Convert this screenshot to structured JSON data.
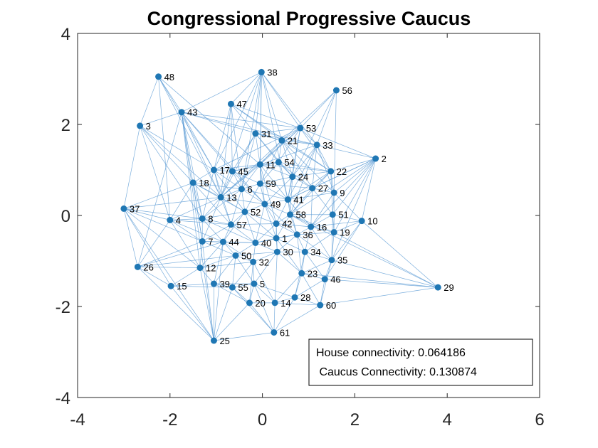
{
  "chart_data": {
    "type": "scatter",
    "title": "Congressional Progressive Caucus",
    "xlabel": "",
    "ylabel": "",
    "xlim": [
      -4,
      6
    ],
    "ylim": [
      -4,
      4
    ],
    "xticks": [
      "-4",
      "-2",
      "0",
      "2",
      "4",
      "6"
    ],
    "yticks": [
      "4",
      "2",
      "0",
      "-2",
      "-4"
    ],
    "grid": false,
    "marker_color": "#1f77b4",
    "edge_color": "#5b9bd5",
    "nodes": [
      {
        "id": "1",
        "x": 0.3,
        "y": -0.5
      },
      {
        "id": "2",
        "x": 2.45,
        "y": 1.25
      },
      {
        "id": "3",
        "x": -2.65,
        "y": 1.97
      },
      {
        "id": "4",
        "x": -2.0,
        "y": -0.1
      },
      {
        "id": "5",
        "x": -0.18,
        "y": -1.5
      },
      {
        "id": "6",
        "x": -0.45,
        "y": 0.58
      },
      {
        "id": "7",
        "x": -1.3,
        "y": -0.57
      },
      {
        "id": "8",
        "x": -1.3,
        "y": -0.07
      },
      {
        "id": "9",
        "x": 1.55,
        "y": 0.5
      },
      {
        "id": "10",
        "x": 2.15,
        "y": -0.12
      },
      {
        "id": "11",
        "x": -0.05,
        "y": 1.12
      },
      {
        "id": "12",
        "x": -1.35,
        "y": -1.15
      },
      {
        "id": "13",
        "x": -0.9,
        "y": 0.4
      },
      {
        "id": "14",
        "x": 0.27,
        "y": -1.92
      },
      {
        "id": "15",
        "x": -1.98,
        "y": -1.55
      },
      {
        "id": "16",
        "x": 1.05,
        "y": -0.25
      },
      {
        "id": "17",
        "x": -1.05,
        "y": 1.0
      },
      {
        "id": "18",
        "x": -1.5,
        "y": 0.72
      },
      {
        "id": "19",
        "x": 1.55,
        "y": -0.37
      },
      {
        "id": "20",
        "x": -0.28,
        "y": -1.92
      },
      {
        "id": "21",
        "x": 0.42,
        "y": 1.65
      },
      {
        "id": "22",
        "x": 1.48,
        "y": 0.97
      },
      {
        "id": "23",
        "x": 0.85,
        "y": -1.27
      },
      {
        "id": "24",
        "x": 0.65,
        "y": 0.85
      },
      {
        "id": "25",
        "x": -1.05,
        "y": -2.75
      },
      {
        "id": "26",
        "x": -2.7,
        "y": -1.13
      },
      {
        "id": "27",
        "x": 1.08,
        "y": 0.6
      },
      {
        "id": "28",
        "x": 0.7,
        "y": -1.8
      },
      {
        "id": "29",
        "x": 3.8,
        "y": -1.58
      },
      {
        "id": "30",
        "x": 0.32,
        "y": -0.8
      },
      {
        "id": "31",
        "x": -0.15,
        "y": 1.8
      },
      {
        "id": "32",
        "x": -0.2,
        "y": -1.02
      },
      {
        "id": "33",
        "x": 1.18,
        "y": 1.55
      },
      {
        "id": "34",
        "x": 0.92,
        "y": -0.8
      },
      {
        "id": "35",
        "x": 1.5,
        "y": -0.98
      },
      {
        "id": "36",
        "x": 0.75,
        "y": -0.42
      },
      {
        "id": "37",
        "x": -3.0,
        "y": 0.15
      },
      {
        "id": "38",
        "x": -0.02,
        "y": 3.15
      },
      {
        "id": "39",
        "x": -1.05,
        "y": -1.5
      },
      {
        "id": "40",
        "x": -0.15,
        "y": -0.6
      },
      {
        "id": "41",
        "x": 0.55,
        "y": 0.35
      },
      {
        "id": "42",
        "x": 0.3,
        "y": -0.18
      },
      {
        "id": "43",
        "x": -1.75,
        "y": 2.27
      },
      {
        "id": "44",
        "x": -0.85,
        "y": -0.58
      },
      {
        "id": "45",
        "x": -0.65,
        "y": 0.97
      },
      {
        "id": "46",
        "x": 1.35,
        "y": -1.4
      },
      {
        "id": "47",
        "x": -0.68,
        "y": 2.45
      },
      {
        "id": "48",
        "x": -2.25,
        "y": 3.05
      },
      {
        "id": "49",
        "x": 0.05,
        "y": 0.25
      },
      {
        "id": "50",
        "x": -0.58,
        "y": -0.88
      },
      {
        "id": "51",
        "x": 1.52,
        "y": 0.02
      },
      {
        "id": "52",
        "x": -0.38,
        "y": 0.08
      },
      {
        "id": "53",
        "x": 0.82,
        "y": 1.92
      },
      {
        "id": "54",
        "x": 0.35,
        "y": 1.17
      },
      {
        "id": "55",
        "x": -0.65,
        "y": -1.58
      },
      {
        "id": "56",
        "x": 1.6,
        "y": 2.75
      },
      {
        "id": "57",
        "x": -0.68,
        "y": -0.2
      },
      {
        "id": "58",
        "x": 0.6,
        "y": 0.02
      },
      {
        "id": "59",
        "x": -0.05,
        "y": 0.7
      },
      {
        "id": "60",
        "x": 1.25,
        "y": -1.97
      },
      {
        "id": "61",
        "x": 0.25,
        "y": -2.57
      }
    ],
    "edges": [
      [
        "48",
        "43"
      ],
      [
        "48",
        "3"
      ],
      [
        "48",
        "17"
      ],
      [
        "48",
        "13"
      ],
      [
        "48",
        "11"
      ],
      [
        "38",
        "47"
      ],
      [
        "38",
        "31"
      ],
      [
        "38",
        "43"
      ],
      [
        "38",
        "11"
      ],
      [
        "38",
        "21"
      ],
      [
        "38",
        "33"
      ],
      [
        "38",
        "53"
      ],
      [
        "38",
        "59"
      ],
      [
        "38",
        "6"
      ],
      [
        "38",
        "41"
      ],
      [
        "38",
        "13"
      ],
      [
        "56",
        "53"
      ],
      [
        "56",
        "9"
      ],
      [
        "56",
        "24"
      ],
      [
        "56",
        "33"
      ],
      [
        "43",
        "3"
      ],
      [
        "43",
        "17"
      ],
      [
        "43",
        "13"
      ],
      [
        "43",
        "7"
      ],
      [
        "43",
        "26"
      ],
      [
        "43",
        "12"
      ],
      [
        "43",
        "45"
      ],
      [
        "43",
        "8"
      ],
      [
        "43",
        "49"
      ],
      [
        "43",
        "53"
      ],
      [
        "43",
        "21"
      ],
      [
        "43",
        "33"
      ],
      [
        "43",
        "25"
      ],
      [
        "47",
        "17"
      ],
      [
        "47",
        "31"
      ],
      [
        "47",
        "21"
      ],
      [
        "47",
        "6"
      ],
      [
        "47",
        "13"
      ],
      [
        "47",
        "22"
      ],
      [
        "47",
        "53"
      ],
      [
        "3",
        "17"
      ],
      [
        "3",
        "18"
      ],
      [
        "3",
        "13"
      ],
      [
        "3",
        "8"
      ],
      [
        "3",
        "4"
      ],
      [
        "31",
        "21"
      ],
      [
        "31",
        "53"
      ],
      [
        "31",
        "11"
      ],
      [
        "31",
        "54"
      ],
      [
        "31",
        "33"
      ],
      [
        "31",
        "45"
      ],
      [
        "31",
        "13"
      ],
      [
        "31",
        "24"
      ],
      [
        "31",
        "6"
      ],
      [
        "53",
        "21"
      ],
      [
        "53",
        "33"
      ],
      [
        "53",
        "22"
      ],
      [
        "53",
        "2"
      ],
      [
        "53",
        "24"
      ],
      [
        "53",
        "41"
      ],
      [
        "53",
        "11"
      ],
      [
        "53",
        "54"
      ],
      [
        "53",
        "13"
      ],
      [
        "53",
        "17"
      ],
      [
        "21",
        "33"
      ],
      [
        "21",
        "22"
      ],
      [
        "21",
        "54"
      ],
      [
        "21",
        "11"
      ],
      [
        "21",
        "13"
      ],
      [
        "21",
        "59"
      ],
      [
        "21",
        "24"
      ],
      [
        "21",
        "27"
      ],
      [
        "21",
        "9"
      ],
      [
        "33",
        "2"
      ],
      [
        "33",
        "22"
      ],
      [
        "33",
        "9"
      ],
      [
        "33",
        "27"
      ],
      [
        "33",
        "11"
      ],
      [
        "33",
        "24"
      ],
      [
        "33",
        "41"
      ],
      [
        "33",
        "58"
      ],
      [
        "2",
        "22"
      ],
      [
        "2",
        "9"
      ],
      [
        "2",
        "51"
      ],
      [
        "2",
        "10"
      ],
      [
        "2",
        "19"
      ],
      [
        "2",
        "27"
      ],
      [
        "2",
        "16"
      ],
      [
        "2",
        "58"
      ],
      [
        "2",
        "35"
      ],
      [
        "17",
        "45"
      ],
      [
        "17",
        "18"
      ],
      [
        "17",
        "13"
      ],
      [
        "17",
        "6"
      ],
      [
        "17",
        "11"
      ],
      [
        "17",
        "8"
      ],
      [
        "17",
        "57"
      ],
      [
        "17",
        "52"
      ],
      [
        "45",
        "11"
      ],
      [
        "45",
        "6"
      ],
      [
        "45",
        "13"
      ],
      [
        "45",
        "59"
      ],
      [
        "45",
        "49"
      ],
      [
        "45",
        "54"
      ],
      [
        "11",
        "54"
      ],
      [
        "11",
        "59"
      ],
      [
        "11",
        "24"
      ],
      [
        "11",
        "6"
      ],
      [
        "11",
        "49"
      ],
      [
        "11",
        "41"
      ],
      [
        "11",
        "22"
      ],
      [
        "11",
        "13"
      ],
      [
        "11",
        "42"
      ],
      [
        "54",
        "24"
      ],
      [
        "54",
        "22"
      ],
      [
        "54",
        "27"
      ],
      [
        "54",
        "41"
      ],
      [
        "54",
        "59"
      ],
      [
        "22",
        "9"
      ],
      [
        "22",
        "27"
      ],
      [
        "22",
        "24"
      ],
      [
        "22",
        "51"
      ],
      [
        "22",
        "41"
      ],
      [
        "22",
        "58"
      ],
      [
        "18",
        "13"
      ],
      [
        "18",
        "8"
      ],
      [
        "18",
        "4"
      ],
      [
        "18",
        "7"
      ],
      [
        "18",
        "37"
      ],
      [
        "18",
        "6"
      ],
      [
        "18",
        "57"
      ],
      [
        "18",
        "52"
      ],
      [
        "6",
        "59"
      ],
      [
        "6",
        "13"
      ],
      [
        "6",
        "49"
      ],
      [
        "6",
        "52"
      ],
      [
        "6",
        "57"
      ],
      [
        "6",
        "8"
      ],
      [
        "6",
        "41"
      ],
      [
        "24",
        "27"
      ],
      [
        "24",
        "41"
      ],
      [
        "24",
        "59"
      ],
      [
        "24",
        "49"
      ],
      [
        "24",
        "58"
      ],
      [
        "59",
        "49"
      ],
      [
        "59",
        "41"
      ],
      [
        "59",
        "52"
      ],
      [
        "59",
        "27"
      ],
      [
        "27",
        "9"
      ],
      [
        "27",
        "41"
      ],
      [
        "27",
        "58"
      ],
      [
        "27",
        "51"
      ],
      [
        "27",
        "16"
      ],
      [
        "9",
        "51"
      ],
      [
        "9",
        "10"
      ],
      [
        "9",
        "16"
      ],
      [
        "9",
        "41"
      ],
      [
        "9",
        "19"
      ],
      [
        "13",
        "8"
      ],
      [
        "13",
        "49"
      ],
      [
        "13",
        "52"
      ],
      [
        "13",
        "57"
      ],
      [
        "13",
        "4"
      ],
      [
        "13",
        "7"
      ],
      [
        "41",
        "49"
      ],
      [
        "41",
        "58"
      ],
      [
        "41",
        "42"
      ],
      [
        "41",
        "16"
      ],
      [
        "41",
        "36"
      ],
      [
        "37",
        "4"
      ],
      [
        "37",
        "8"
      ],
      [
        "37",
        "26"
      ],
      [
        "37",
        "7"
      ],
      [
        "37",
        "15"
      ],
      [
        "37",
        "25"
      ],
      [
        "37",
        "12"
      ],
      [
        "37",
        "13"
      ],
      [
        "4",
        "8"
      ],
      [
        "4",
        "7"
      ],
      [
        "4",
        "26"
      ],
      [
        "4",
        "57"
      ],
      [
        "4",
        "44"
      ],
      [
        "4",
        "12"
      ],
      [
        "8",
        "57"
      ],
      [
        "8",
        "52"
      ],
      [
        "8",
        "7"
      ],
      [
        "8",
        "44"
      ],
      [
        "8",
        "40"
      ],
      [
        "52",
        "49"
      ],
      [
        "52",
        "57"
      ],
      [
        "52",
        "42"
      ],
      [
        "52",
        "40"
      ],
      [
        "52",
        "44"
      ],
      [
        "52",
        "1"
      ],
      [
        "49",
        "42"
      ],
      [
        "49",
        "58"
      ],
      [
        "49",
        "40"
      ],
      [
        "49",
        "1"
      ],
      [
        "49",
        "36"
      ],
      [
        "58",
        "51"
      ],
      [
        "58",
        "16"
      ],
      [
        "58",
        "36"
      ],
      [
        "58",
        "42"
      ],
      [
        "58",
        "19"
      ],
      [
        "58",
        "1"
      ],
      [
        "51",
        "10"
      ],
      [
        "51",
        "16"
      ],
      [
        "51",
        "19"
      ],
      [
        "51",
        "35"
      ],
      [
        "10",
        "19"
      ],
      [
        "10",
        "16"
      ],
      [
        "10",
        "35"
      ],
      [
        "10",
        "29"
      ],
      [
        "10",
        "46"
      ],
      [
        "57",
        "42"
      ],
      [
        "57",
        "40"
      ],
      [
        "57",
        "44"
      ],
      [
        "57",
        "7"
      ],
      [
        "57",
        "1"
      ],
      [
        "42",
        "16"
      ],
      [
        "42",
        "36"
      ],
      [
        "42",
        "1"
      ],
      [
        "42",
        "40"
      ],
      [
        "42",
        "30"
      ],
      [
        "16",
        "36"
      ],
      [
        "16",
        "19"
      ],
      [
        "16",
        "34"
      ],
      [
        "16",
        "35"
      ],
      [
        "7",
        "44"
      ],
      [
        "7",
        "26"
      ],
      [
        "7",
        "12"
      ],
      [
        "7",
        "40"
      ],
      [
        "7",
        "50"
      ],
      [
        "44",
        "40"
      ],
      [
        "44",
        "50"
      ],
      [
        "44",
        "12"
      ],
      [
        "44",
        "32"
      ],
      [
        "44",
        "39"
      ],
      [
        "40",
        "1"
      ],
      [
        "40",
        "30"
      ],
      [
        "40",
        "50"
      ],
      [
        "40",
        "32"
      ],
      [
        "40",
        "36"
      ],
      [
        "1",
        "36"
      ],
      [
        "1",
        "30"
      ],
      [
        "1",
        "34"
      ],
      [
        "1",
        "23"
      ],
      [
        "36",
        "19"
      ],
      [
        "36",
        "34"
      ],
      [
        "36",
        "30"
      ],
      [
        "36",
        "35"
      ],
      [
        "36",
        "23"
      ],
      [
        "19",
        "35"
      ],
      [
        "19",
        "34"
      ],
      [
        "19",
        "29"
      ],
      [
        "26",
        "12"
      ],
      [
        "26",
        "15"
      ],
      [
        "26",
        "50"
      ],
      [
        "26",
        "25"
      ],
      [
        "26",
        "44"
      ],
      [
        "12",
        "50"
      ],
      [
        "12",
        "39"
      ],
      [
        "12",
        "15"
      ],
      [
        "12",
        "25"
      ],
      [
        "12",
        "32"
      ],
      [
        "50",
        "32"
      ],
      [
        "50",
        "30"
      ],
      [
        "50",
        "39"
      ],
      [
        "50",
        "55"
      ],
      [
        "50",
        "5"
      ],
      [
        "30",
        "34"
      ],
      [
        "30",
        "32"
      ],
      [
        "30",
        "23"
      ],
      [
        "30",
        "14"
      ],
      [
        "30",
        "5"
      ],
      [
        "34",
        "35"
      ],
      [
        "34",
        "23"
      ],
      [
        "34",
        "46"
      ],
      [
        "34",
        "28"
      ],
      [
        "35",
        "46"
      ],
      [
        "35",
        "23"
      ],
      [
        "35",
        "29"
      ],
      [
        "35",
        "60"
      ],
      [
        "32",
        "5"
      ],
      [
        "32",
        "55"
      ],
      [
        "32",
        "20"
      ],
      [
        "32",
        "14"
      ],
      [
        "23",
        "46"
      ],
      [
        "23",
        "28"
      ],
      [
        "23",
        "14"
      ],
      [
        "23",
        "60"
      ],
      [
        "46",
        "60"
      ],
      [
        "46",
        "28"
      ],
      [
        "46",
        "29"
      ],
      [
        "15",
        "39"
      ],
      [
        "15",
        "25"
      ],
      [
        "15",
        "55"
      ],
      [
        "39",
        "55"
      ],
      [
        "39",
        "25"
      ],
      [
        "39",
        "20"
      ],
      [
        "39",
        "5"
      ],
      [
        "55",
        "5"
      ],
      [
        "55",
        "20"
      ],
      [
        "55",
        "25"
      ],
      [
        "55",
        "61"
      ],
      [
        "5",
        "20"
      ],
      [
        "5",
        "14"
      ],
      [
        "5",
        "28"
      ],
      [
        "5",
        "61"
      ],
      [
        "20",
        "14"
      ],
      [
        "20",
        "61"
      ],
      [
        "20",
        "25"
      ],
      [
        "14",
        "28"
      ],
      [
        "14",
        "61"
      ],
      [
        "14",
        "60"
      ],
      [
        "28",
        "60"
      ],
      [
        "28",
        "61"
      ],
      [
        "61",
        "25"
      ],
      [
        "61",
        "60"
      ],
      [
        "25",
        "44"
      ],
      [
        "25",
        "7"
      ],
      [
        "29",
        "60"
      ],
      [
        "29",
        "23"
      ],
      [
        "29",
        "58"
      ],
      [
        "3",
        "37"
      ],
      [
        "48",
        "4"
      ],
      [
        "38",
        "17"
      ],
      [
        "47",
        "45"
      ],
      [
        "56",
        "21"
      ],
      [
        "2",
        "41"
      ]
    ],
    "annotation": {
      "line1": "House connectivity: 0.064186",
      "line2": " Caucus Connectivity: 0.130874"
    }
  }
}
